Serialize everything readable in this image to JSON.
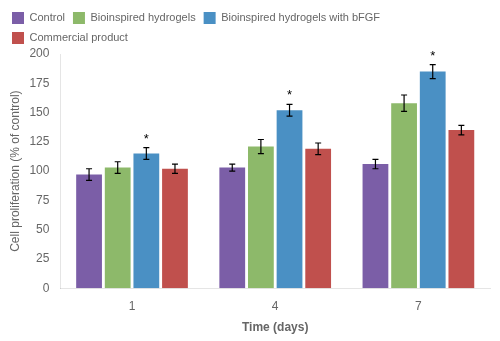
{
  "chart_data": {
    "type": "bar",
    "xlabel": "Time (days)",
    "ylabel": "Cell proliferation (% of control)",
    "categories": [
      "1",
      "4",
      "7"
    ],
    "series": [
      {
        "name": "Control",
        "color": "#7B5EA7",
        "values": [
          97,
          103,
          106
        ],
        "errors": [
          5,
          3,
          4
        ]
      },
      {
        "name": "Bioinspired hydrogels",
        "color": "#8DB96A",
        "values": [
          103,
          121,
          158
        ],
        "errors": [
          5,
          6,
          7
        ]
      },
      {
        "name": "Bioinspired hydrogels with bFGF",
        "color": "#4A90C4",
        "values": [
          115,
          152,
          185
        ],
        "errors": [
          5,
          5,
          6
        ]
      },
      {
        "name": "Commercial product",
        "color": "#C0504D",
        "values": [
          102,
          119,
          135
        ],
        "errors": [
          4,
          5,
          4
        ]
      }
    ],
    "annotations": [
      {
        "text": "*",
        "category": "1",
        "series": "Bioinspired hydrogels with bFGF"
      },
      {
        "text": "*",
        "category": "4",
        "series": "Bioinspired hydrogels with bFGF"
      },
      {
        "text": "*",
        "category": "7",
        "series": "Bioinspired hydrogels with bFGF"
      }
    ],
    "ylim": [
      0,
      200
    ],
    "yticks": [
      0,
      25,
      50,
      75,
      100,
      125,
      150,
      175,
      200
    ],
    "grid": false,
    "legend": "upper left"
  }
}
